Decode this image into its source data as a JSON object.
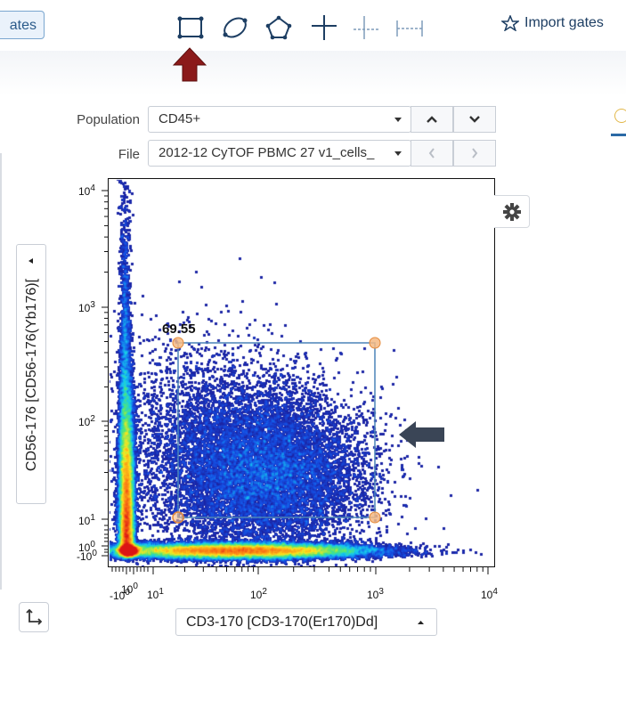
{
  "toolbar": {
    "gates_button_label": "ates",
    "tools": [
      {
        "name": "rectangle-gate-tool",
        "icon": "rectangle-icon"
      },
      {
        "name": "ellipse-gate-tool",
        "icon": "ellipse-icon"
      },
      {
        "name": "polygon-gate-tool",
        "icon": "polygon-icon"
      },
      {
        "name": "quadrant-gate-tool",
        "icon": "crosshair-icon"
      },
      {
        "name": "split-gate-tool",
        "icon": "split-icon"
      },
      {
        "name": "range-gate-tool",
        "icon": "range-icon"
      }
    ],
    "import_gates_label": "Import gates"
  },
  "controls": {
    "population_label": "Population",
    "population_value": "CD45+",
    "file_label": "File",
    "file_value": "2012-12 CyTOF PBMC 27 v1_cells_"
  },
  "plot": {
    "x_axis_label": "CD3-170 [CD3-170(Er170)Dd]",
    "y_axis_label": "CD56-176 [CD56-176(Yb176)[",
    "gate_value": "69.55",
    "y_ticks": [
      {
        "base": "10",
        "exp": "4"
      },
      {
        "base": "10",
        "exp": "3"
      },
      {
        "base": "10",
        "exp": "2"
      },
      {
        "base": "10",
        "exp": "1"
      },
      {
        "base": "10",
        "exp": "0"
      },
      {
        "base": "-10",
        "exp": "0"
      }
    ],
    "x_ticks": [
      {
        "base": "-10",
        "exp": "0"
      },
      {
        "base": "10",
        "exp": "0"
      },
      {
        "base": "10",
        "exp": "1"
      },
      {
        "base": "10",
        "exp": "2"
      },
      {
        "base": "10",
        "exp": "3"
      },
      {
        "base": "10",
        "exp": "4"
      }
    ]
  },
  "colors": {
    "accent": "#2b6aa6",
    "gate_stroke": "#4b84b8",
    "gate_handle": "#f5b982",
    "red_arrow": "#8b1a1a",
    "annotation_arrow": "#3a4556"
  }
}
